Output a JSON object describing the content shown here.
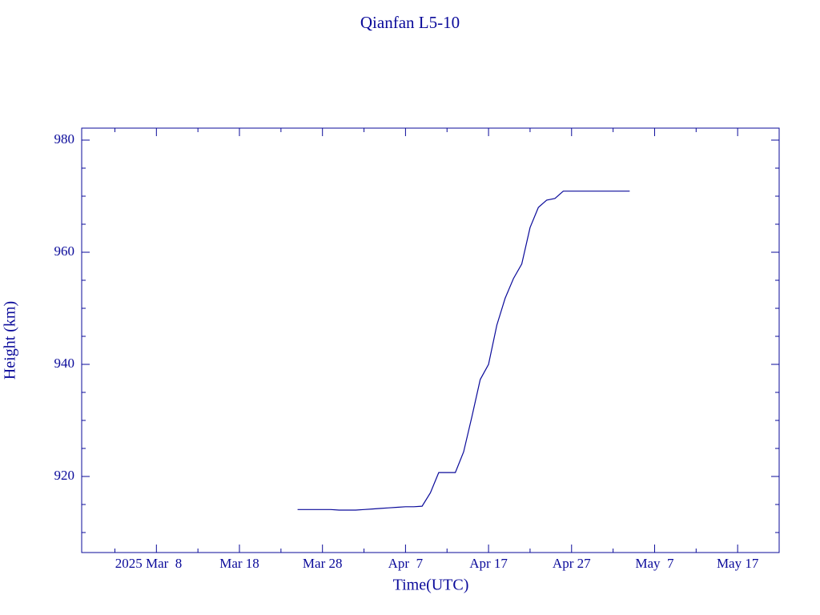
{
  "chart_data": {
    "type": "line",
    "title": "Qianfan L5-10",
    "x_label": "Time(UTC)",
    "y_label": "Height (km)",
    "x": [
      "2025-03-25",
      "2025-03-26",
      "2025-03-27",
      "2025-03-28",
      "2025-03-29",
      "2025-03-30",
      "2025-03-31",
      "2025-04-01",
      "2025-04-02",
      "2025-04-03",
      "2025-04-04",
      "2025-04-05",
      "2025-04-06",
      "2025-04-07",
      "2025-04-08",
      "2025-04-09",
      "2025-04-10",
      "2025-04-11",
      "2025-04-12",
      "2025-04-13",
      "2025-04-14",
      "2025-04-15",
      "2025-04-16",
      "2025-04-17",
      "2025-04-18",
      "2025-04-19",
      "2025-04-20",
      "2025-04-21",
      "2025-04-22",
      "2025-04-23",
      "2025-04-24",
      "2025-04-25",
      "2025-04-26",
      "2025-04-27",
      "2025-04-28",
      "2025-04-29",
      "2025-04-30",
      "2025-05-01",
      "2025-05-02",
      "2025-05-03",
      "2025-05-04"
    ],
    "series": [
      {
        "color": "#0a0a9a",
        "values": [
          914.1,
          914.1,
          914.1,
          914.1,
          914.1,
          914.0,
          914.0,
          914.0,
          914.1,
          914.2,
          914.3,
          914.4,
          914.5,
          914.6,
          914.6,
          914.7,
          917.1,
          920.7,
          920.7,
          920.7,
          924.4,
          930.7,
          937.3,
          940.0,
          947.0,
          951.8,
          955.3,
          957.9,
          964.4,
          968.0,
          969.3,
          969.6,
          970.9,
          970.9,
          970.9,
          970.9,
          970.9,
          970.9,
          970.9,
          970.9,
          970.9
        ]
      }
    ],
    "xlim": [
      "2025-02-27",
      "2025-05-22"
    ],
    "xticks": [
      {
        "value": "2025-03-08",
        "label": "2025 Mar  8"
      },
      {
        "value": "2025-03-18",
        "label": "Mar 18"
      },
      {
        "value": "2025-03-28",
        "label": "Mar 28"
      },
      {
        "value": "2025-04-07",
        "label": "Apr  7"
      },
      {
        "value": "2025-04-17",
        "label": "Apr 17"
      },
      {
        "value": "2025-04-27",
        "label": "Apr 27"
      },
      {
        "value": "2025-05-07",
        "label": "May  7"
      },
      {
        "value": "2025-05-17",
        "label": "May 17"
      }
    ],
    "xminorticks": [
      "2025-03-03",
      "2025-03-13",
      "2025-03-23",
      "2025-04-02",
      "2025-04-12",
      "2025-04-22",
      "2025-05-02",
      "2025-05-12"
    ],
    "ylim": [
      906.43,
      982.14
    ],
    "yticks": [
      920,
      940,
      960,
      980
    ],
    "yminorticks": [
      910,
      915,
      925,
      930,
      935,
      945,
      950,
      955,
      965,
      970,
      975
    ]
  }
}
